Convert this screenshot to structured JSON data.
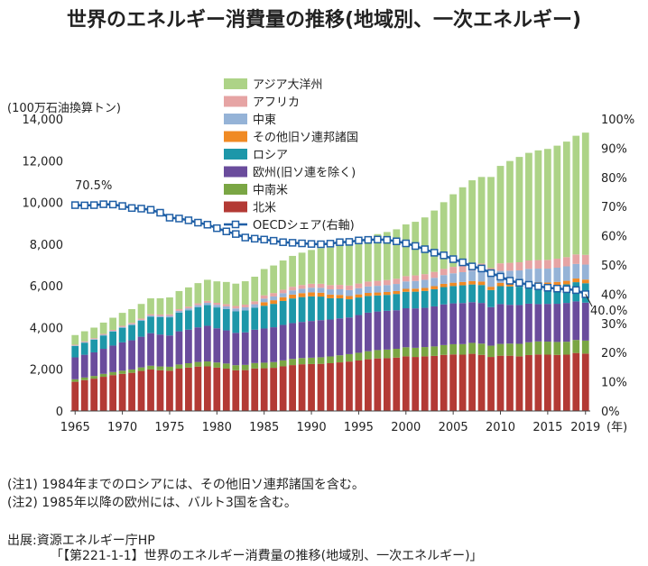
{
  "title": "世界のエネルギー消費量の推移(地域別、一次エネルギー)",
  "chart_data": {
    "type": "bar",
    "stacked": true,
    "title": "世界のエネルギー消費量の推移(地域別、一次エネルギー)",
    "ylabel": "(100万石油換算トン)",
    "y2label": "OECDシェア(右軸)",
    "xlabel": "(年)",
    "ylim": [
      0,
      14000
    ],
    "y2lim": [
      0,
      100
    ],
    "yticks": [
      "0",
      "2,000",
      "4,000",
      "6,000",
      "8,000",
      "10,000",
      "12,000",
      "14,000"
    ],
    "y2ticks": [
      "0%",
      "10%",
      "20%",
      "30%",
      "40%",
      "50%",
      "60%",
      "70%",
      "80%",
      "90%",
      "100%"
    ],
    "xtick_labels": [
      "1965",
      "1970",
      "1975",
      "1980",
      "1985",
      "1990",
      "1995",
      "2000",
      "2005",
      "2010",
      "2015",
      "2019"
    ],
    "categories": [
      1965,
      1966,
      1967,
      1968,
      1969,
      1970,
      1971,
      1972,
      1973,
      1974,
      1975,
      1976,
      1977,
      1978,
      1979,
      1980,
      1981,
      1982,
      1983,
      1984,
      1985,
      1986,
      1987,
      1988,
      1989,
      1990,
      1991,
      1992,
      1993,
      1994,
      1995,
      1996,
      1997,
      1998,
      1999,
      2000,
      2001,
      2002,
      2003,
      2004,
      2005,
      2006,
      2007,
      2008,
      2009,
      2010,
      2011,
      2012,
      2013,
      2014,
      2015,
      2016,
      2017,
      2018,
      2019
    ],
    "series": [
      {
        "name": "北米",
        "color": "#b33a35",
        "values": [
          1400,
          1480,
          1550,
          1640,
          1720,
          1780,
          1830,
          1920,
          1990,
          1950,
          1930,
          2030,
          2080,
          2130,
          2140,
          2080,
          2030,
          1950,
          1960,
          2040,
          2050,
          2070,
          2140,
          2200,
          2240,
          2250,
          2260,
          2290,
          2330,
          2370,
          2420,
          2480,
          2520,
          2530,
          2560,
          2620,
          2590,
          2620,
          2640,
          2690,
          2710,
          2700,
          2740,
          2690,
          2590,
          2650,
          2650,
          2620,
          2680,
          2710,
          2700,
          2690,
          2700,
          2780,
          2750
        ]
      },
      {
        "name": "中南米",
        "color": "#7aa644",
        "values": [
          120,
          125,
          130,
          140,
          145,
          150,
          160,
          170,
          180,
          185,
          190,
          200,
          210,
          220,
          235,
          245,
          245,
          245,
          250,
          258,
          265,
          275,
          285,
          295,
          300,
          305,
          315,
          325,
          340,
          355,
          370,
          385,
          400,
          415,
          420,
          435,
          440,
          445,
          455,
          470,
          490,
          505,
          525,
          540,
          540,
          565,
          580,
          600,
          615,
          625,
          625,
          620,
          620,
          625,
          625
        ]
      },
      {
        "name": "欧州(旧ソ連を除く)",
        "color": "#6a4c9c",
        "values": [
          1050,
          1090,
          1130,
          1200,
          1270,
          1360,
          1400,
          1470,
          1560,
          1530,
          1500,
          1590,
          1610,
          1660,
          1710,
          1640,
          1590,
          1550,
          1560,
          1600,
          1640,
          1670,
          1700,
          1720,
          1730,
          1760,
          1780,
          1770,
          1770,
          1760,
          1810,
          1850,
          1850,
          1860,
          1850,
          1870,
          1890,
          1880,
          1920,
          1950,
          1960,
          1970,
          1950,
          1950,
          1850,
          1910,
          1860,
          1860,
          1850,
          1790,
          1810,
          1830,
          1860,
          1850,
          1820
        ]
      },
      {
        "name": "ロシア",
        "color": "#1d97a9",
        "values": [
          550,
          580,
          610,
          640,
          670,
          700,
          730,
          760,
          790,
          830,
          870,
          900,
          930,
          960,
          990,
          1000,
          1020,
          1030,
          1050,
          1060,
          1090,
          1120,
          1150,
          1180,
          1190,
          1180,
          1130,
          1020,
          960,
          870,
          840,
          800,
          770,
          760,
          780,
          790,
          800,
          810,
          820,
          830,
          830,
          850,
          850,
          860,
          820,
          860,
          880,
          880,
          870,
          880,
          860,
          880,
          890,
          920,
          930
        ]
      },
      {
        "name": "その他旧ソ連邦諸国",
        "color": "#f08a24",
        "values": [
          0,
          0,
          0,
          0,
          0,
          0,
          0,
          0,
          0,
          0,
          0,
          0,
          0,
          0,
          0,
          0,
          0,
          0,
          0,
          0,
          170,
          175,
          180,
          185,
          190,
          190,
          185,
          175,
          165,
          155,
          150,
          145,
          140,
          140,
          140,
          140,
          145,
          145,
          150,
          155,
          160,
          160,
          165,
          165,
          155,
          160,
          165,
          170,
          170,
          170,
          165,
          170,
          170,
          175,
          175
        ]
      },
      {
        "name": "中東",
        "color": "#95b3d7",
        "values": [
          20,
          25,
          28,
          32,
          36,
          40,
          45,
          50,
          55,
          60,
          70,
          80,
          90,
          100,
          110,
          120,
          130,
          140,
          150,
          160,
          170,
          180,
          190,
          200,
          210,
          225,
          235,
          250,
          270,
          285,
          295,
          310,
          320,
          330,
          340,
          355,
          370,
          385,
          400,
          420,
          450,
          470,
          500,
          520,
          540,
          570,
          590,
          610,
          630,
          650,
          665,
          680,
          695,
          700,
          720
        ]
      },
      {
        "name": "アフリカ",
        "color": "#e6a4a4",
        "values": [
          40,
          42,
          44,
          46,
          50,
          55,
          58,
          62,
          65,
          70,
          75,
          80,
          85,
          90,
          95,
          100,
          110,
          120,
          130,
          140,
          160,
          165,
          170,
          175,
          180,
          190,
          195,
          205,
          210,
          220,
          225,
          235,
          240,
          245,
          250,
          255,
          265,
          275,
          285,
          295,
          310,
          320,
          330,
          345,
          355,
          365,
          380,
          390,
          400,
          410,
          420,
          430,
          440,
          455,
          465
        ]
      },
      {
        "name": "アジア大洋州",
        "color": "#add387",
        "values": [
          460,
          480,
          505,
          540,
          580,
          620,
          660,
          700,
          760,
          780,
          810,
          870,
          920,
          970,
          1010,
          1030,
          1060,
          1070,
          1120,
          1180,
          1260,
          1320,
          1400,
          1480,
          1550,
          1620,
          1700,
          1800,
          1880,
          1990,
          2080,
          2160,
          2240,
          2300,
          2370,
          2480,
          2570,
          2720,
          2940,
          3200,
          3480,
          3750,
          4000,
          4150,
          4370,
          4670,
          4880,
          5050,
          5160,
          5260,
          5320,
          5420,
          5540,
          5690,
          5860
        ]
      }
    ],
    "line": {
      "name": "OECDシェア(右軸)",
      "color": "#1f5fa6",
      "values": [
        70.5,
        70.4,
        70.5,
        70.8,
        70.7,
        70.2,
        69.5,
        69.3,
        68.9,
        67.9,
        66.2,
        65.9,
        65.3,
        64.5,
        63.8,
        62.6,
        61.5,
        60.6,
        59.4,
        59.0,
        58.7,
        58.3,
        57.8,
        57.6,
        57.4,
        57.2,
        57.1,
        57.3,
        57.8,
        57.9,
        58.4,
        58.6,
        58.7,
        58.6,
        58.1,
        57.4,
        56.5,
        55.4,
        54.2,
        53.3,
        52.0,
        50.9,
        49.5,
        48.8,
        47.2,
        46.0,
        44.6,
        43.9,
        43.2,
        42.7,
        42.2,
        41.9,
        41.7,
        41.4,
        40.0
      ]
    },
    "annotations": [
      "70.5%",
      "40.0%"
    ]
  },
  "notes": [
    "(注1) 1984年までのロシアには、その他旧ソ連邦諸国を含む。",
    "(注2) 1985年以降の欧州には、バルト3国を含む。"
  ],
  "source": "出展:資源エネルギー庁HP",
  "citation": "「【第221-1-1】世界のエネルギー消費量の推移(地域別、一次エネルギー)」"
}
